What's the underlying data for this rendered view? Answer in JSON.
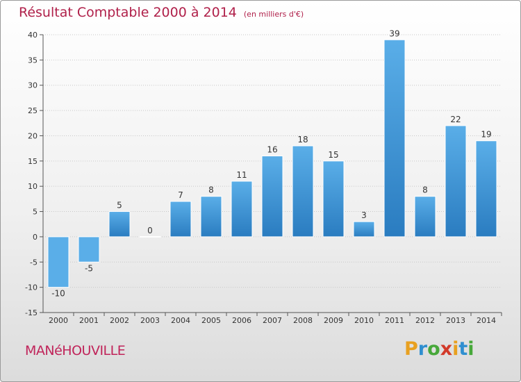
{
  "chart_data": {
    "type": "bar",
    "title": "Résultat Comptable 2000 à 2014",
    "subtitle": "(en milliers d'€)",
    "categories": [
      "2000",
      "2001",
      "2002",
      "2003",
      "2004",
      "2005",
      "2006",
      "2007",
      "2008",
      "2009",
      "2010",
      "2011",
      "2012",
      "2013",
      "2014"
    ],
    "values": [
      -10,
      -5,
      5,
      0,
      7,
      8,
      11,
      16,
      18,
      15,
      3,
      39,
      8,
      22,
      19
    ],
    "ylim": [
      -15,
      40
    ],
    "yticks": [
      -15,
      -10,
      -5,
      0,
      5,
      10,
      15,
      20,
      25,
      30,
      35,
      40
    ],
    "xlabel": "",
    "ylabel": "",
    "grid": true
  },
  "commune": "MANéHOUVILLE",
  "logo": {
    "letters": [
      "P",
      "r",
      "o",
      "x",
      "i",
      "t",
      "i"
    ],
    "colors": [
      "#e8a020",
      "#2f8fd0",
      "#47a83a",
      "#d23a2a",
      "#e8a020",
      "#2f8fd0",
      "#47a83a"
    ]
  },
  "colors": {
    "bar_light": "#5aaee8",
    "bar_dark": "#2a7cc0",
    "title": "#b0204a",
    "grid": "#c8c8c8"
  }
}
